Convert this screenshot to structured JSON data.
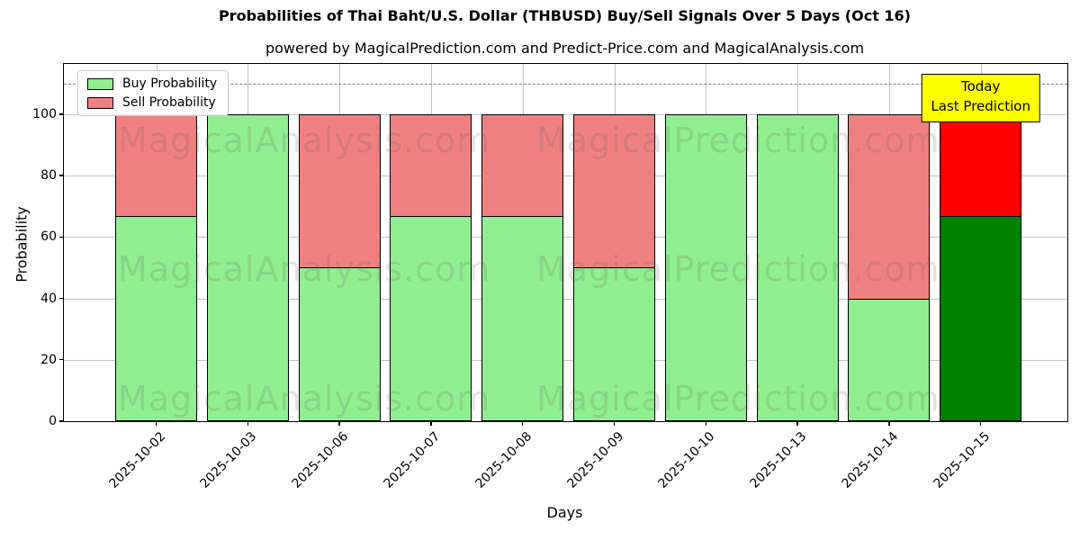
{
  "title": "Probabilities of Thai Baht/U.S. Dollar (THBUSD) Buy/Sell Signals Over 5 Days (Oct 16)",
  "subtitle": "powered by MagicalPrediction.com and Predict-Price.com and MagicalAnalysis.com",
  "legend": [
    {
      "label": "Buy Probability",
      "color": "#90EE90"
    },
    {
      "label": "Sell Probability",
      "color": "#F08080"
    }
  ],
  "annotation": {
    "lines": [
      "Today",
      "Last Prediction"
    ],
    "bg_color": "#FFFF00"
  },
  "watermarks": [
    "MagicalAnalysis.com",
    "MagicalPrediction.com"
  ],
  "chart_data": {
    "type": "bar",
    "stacked": true,
    "title": "Probabilities of Thai Baht/U.S. Dollar (THBUSD) Buy/Sell Signals Over 5 Days (Oct 16)",
    "xlabel": "Days",
    "ylabel": "Probability",
    "categories": [
      "2025-10-02",
      "2025-10-03",
      "2025-10-06",
      "2025-10-07",
      "2025-10-08",
      "2025-10-09",
      "2025-10-10",
      "2025-10-13",
      "2025-10-14",
      "2025-10-15"
    ],
    "series": [
      {
        "name": "Buy Probability",
        "color": "#90EE90",
        "values": [
          67,
          100,
          50,
          67,
          67,
          50,
          100,
          100,
          40,
          67
        ]
      },
      {
        "name": "Sell Probability",
        "color": "#F08080",
        "values": [
          33,
          0,
          50,
          33,
          33,
          50,
          0,
          0,
          60,
          33
        ]
      }
    ],
    "today_index": 9,
    "today_colors": {
      "buy": "#008000",
      "sell": "#FF0000"
    },
    "yticks": [
      0,
      20,
      40,
      60,
      80,
      100
    ],
    "ylim": [
      0,
      116.4
    ],
    "dashed_line_y": 110,
    "grid": true,
    "legend_position": "upper left"
  }
}
